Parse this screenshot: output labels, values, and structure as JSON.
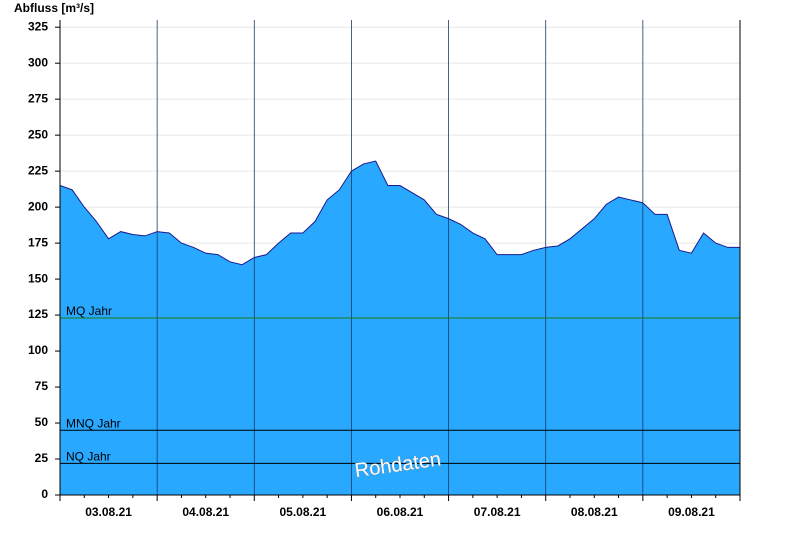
{
  "chart_data": {
    "type": "area",
    "y_label": "Abfluss [m³/s]",
    "categories": [
      null,
      null,
      null,
      null,
      "03.08.21",
      null,
      null,
      null,
      null,
      null,
      null,
      null,
      "04.08.21",
      null,
      null,
      null,
      null,
      null,
      null,
      null,
      "05.08.21",
      null,
      null,
      null,
      null,
      null,
      null,
      null,
      "06.08.21",
      null,
      null,
      null,
      null,
      null,
      null,
      null,
      "07.08.21",
      null,
      null,
      null,
      null,
      null,
      null,
      null,
      "08.08.21",
      null,
      null,
      null,
      null,
      null,
      null,
      null,
      "09.08.21",
      null,
      null,
      null,
      null
    ],
    "values": [
      215,
      212,
      200,
      190,
      178,
      183,
      181,
      180,
      183,
      182,
      175,
      172,
      168,
      167,
      162,
      160,
      165,
      167,
      175,
      182,
      182,
      190,
      205,
      212,
      225,
      230,
      232,
      215,
      215,
      210,
      205,
      195,
      192,
      188,
      182,
      178,
      167,
      167,
      167,
      170,
      172,
      173,
      178,
      185,
      192,
      202,
      207,
      205,
      203,
      195,
      195,
      170,
      168,
      182,
      175,
      172,
      172
    ],
    "color": "#29a8ff",
    "line_color": "#1a1a8c",
    "ylim": [
      0,
      330
    ],
    "yticks": [
      0,
      25,
      50,
      75,
      100,
      125,
      150,
      175,
      200,
      225,
      250,
      275,
      300,
      325
    ],
    "grid": true,
    "reference_lines": [
      {
        "label": "MQ Jahr",
        "value": 123,
        "color": "#1a7a1a"
      },
      {
        "label": "MNQ Jahr",
        "value": 45,
        "color": "#000000"
      },
      {
        "label": "NQ Jahr",
        "value": 22,
        "color": "#000000"
      }
    ],
    "annotation": "Rohdaten"
  }
}
